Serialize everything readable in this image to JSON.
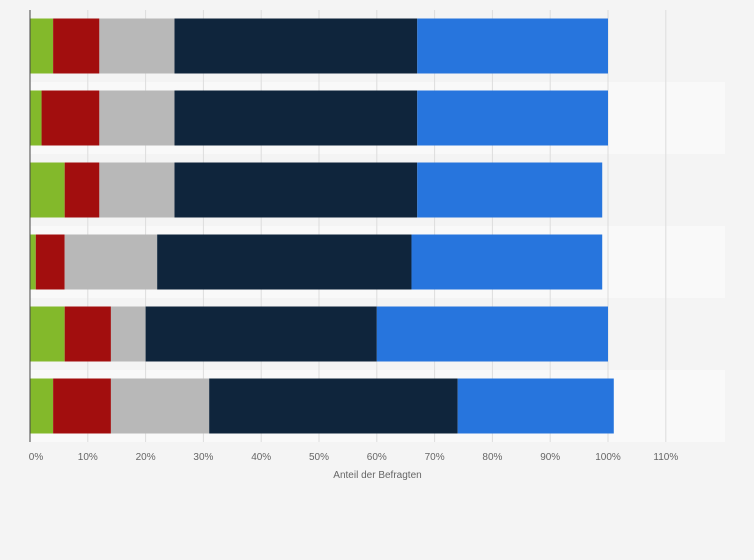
{
  "chart_data": {
    "type": "bar",
    "orientation": "horizontal",
    "stacked": true,
    "title": "",
    "xlabel": "Anteil der Befragten",
    "ylabel": "",
    "xlim": [
      0,
      120
    ],
    "xticks": [
      0,
      10,
      20,
      30,
      40,
      50,
      60,
      70,
      80,
      90,
      100,
      110
    ],
    "xtick_labels": [
      "0%",
      "10%",
      "20%",
      "30%",
      "40%",
      "50%",
      "60%",
      "70%",
      "80%",
      "90%",
      "100%",
      "110%"
    ],
    "categories": [
      "",
      "",
      "",
      "",
      "",
      ""
    ],
    "grid": true,
    "legend": "none",
    "series": [
      {
        "name": "",
        "color": "#83b92b",
        "values": [
          4,
          2,
          6,
          1,
          6,
          4
        ]
      },
      {
        "name": "",
        "color": "#a20e0e",
        "values": [
          8,
          10,
          6,
          5,
          8,
          10
        ]
      },
      {
        "name": "",
        "color": "#b8b8b8",
        "values": [
          13,
          13,
          13,
          16,
          6,
          17
        ]
      },
      {
        "name": "",
        "color": "#0f253c",
        "values": [
          42,
          42,
          42,
          44,
          40,
          43
        ]
      },
      {
        "name": "",
        "color": "#2775dd",
        "values": [
          33,
          33,
          32,
          33,
          40,
          27
        ]
      }
    ]
  }
}
